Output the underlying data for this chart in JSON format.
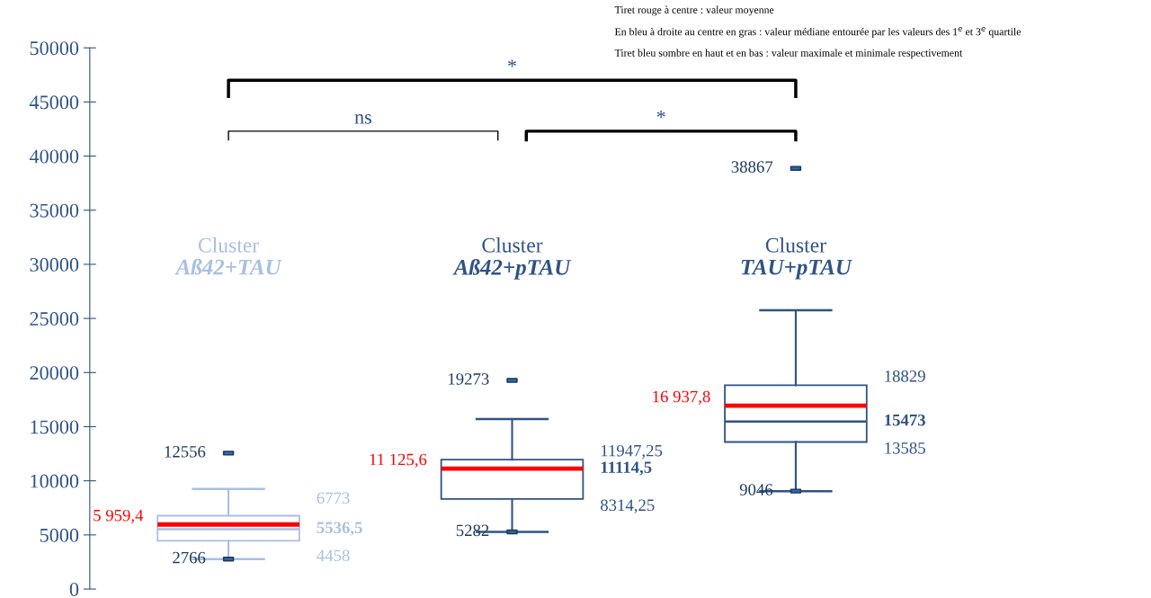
{
  "chart_data": {
    "type": "box",
    "categories": [
      "Cluster\nAß42+TAU",
      "Cluster\nAß42+pTAU",
      "Cluster\nTAU+pTAU"
    ],
    "colors": [
      "#a9bfe3",
      "#2f5386",
      "#2f5386"
    ],
    "boxes": [
      {
        "low": 2766,
        "q1": 4458,
        "median": 5536.5,
        "q3": 6773,
        "high": 9250,
        "mean": 5959.4,
        "outliers": [
          12556
        ]
      },
      {
        "low": 5282,
        "q1": 8314.25,
        "median": 11114.5,
        "q3": 11947.25,
        "high": 15700,
        "mean": 11125.6,
        "outliers": [
          19273
        ]
      },
      {
        "low": 9046,
        "q1": 13585,
        "median": 15473,
        "q3": 18829,
        "high": 25750,
        "mean": 16937.8,
        "outliers": [
          38867
        ]
      }
    ],
    "ylim": [
      0,
      50000
    ],
    "yticks": [
      0,
      5000,
      10000,
      15000,
      20000,
      25000,
      30000,
      35000,
      40000,
      45000,
      50000
    ],
    "tick_labels": "y",
    "grid": false,
    "annotations": [
      "*",
      "ns",
      "*",
      "Tiret rouge à centre : valeur moyenne",
      "En bleu à droite au centre en gras : valeur médiane entourée par les valeurs des 1$^{e}$ et 3$^{e}$ quartile",
      "Tiret bleu sombre en haut et en bas : valeur maximale et minimale respectivement",
      "12556",
      "5 959,4",
      "2766",
      "6773",
      "5536,5",
      "4458",
      "19273",
      "11 125,6",
      "5282",
      "11947,25",
      "11114,5",
      "8314,25",
      "38867",
      "16 937,8",
      "9046",
      "18829",
      "15473",
      "13585"
    ]
  }
}
